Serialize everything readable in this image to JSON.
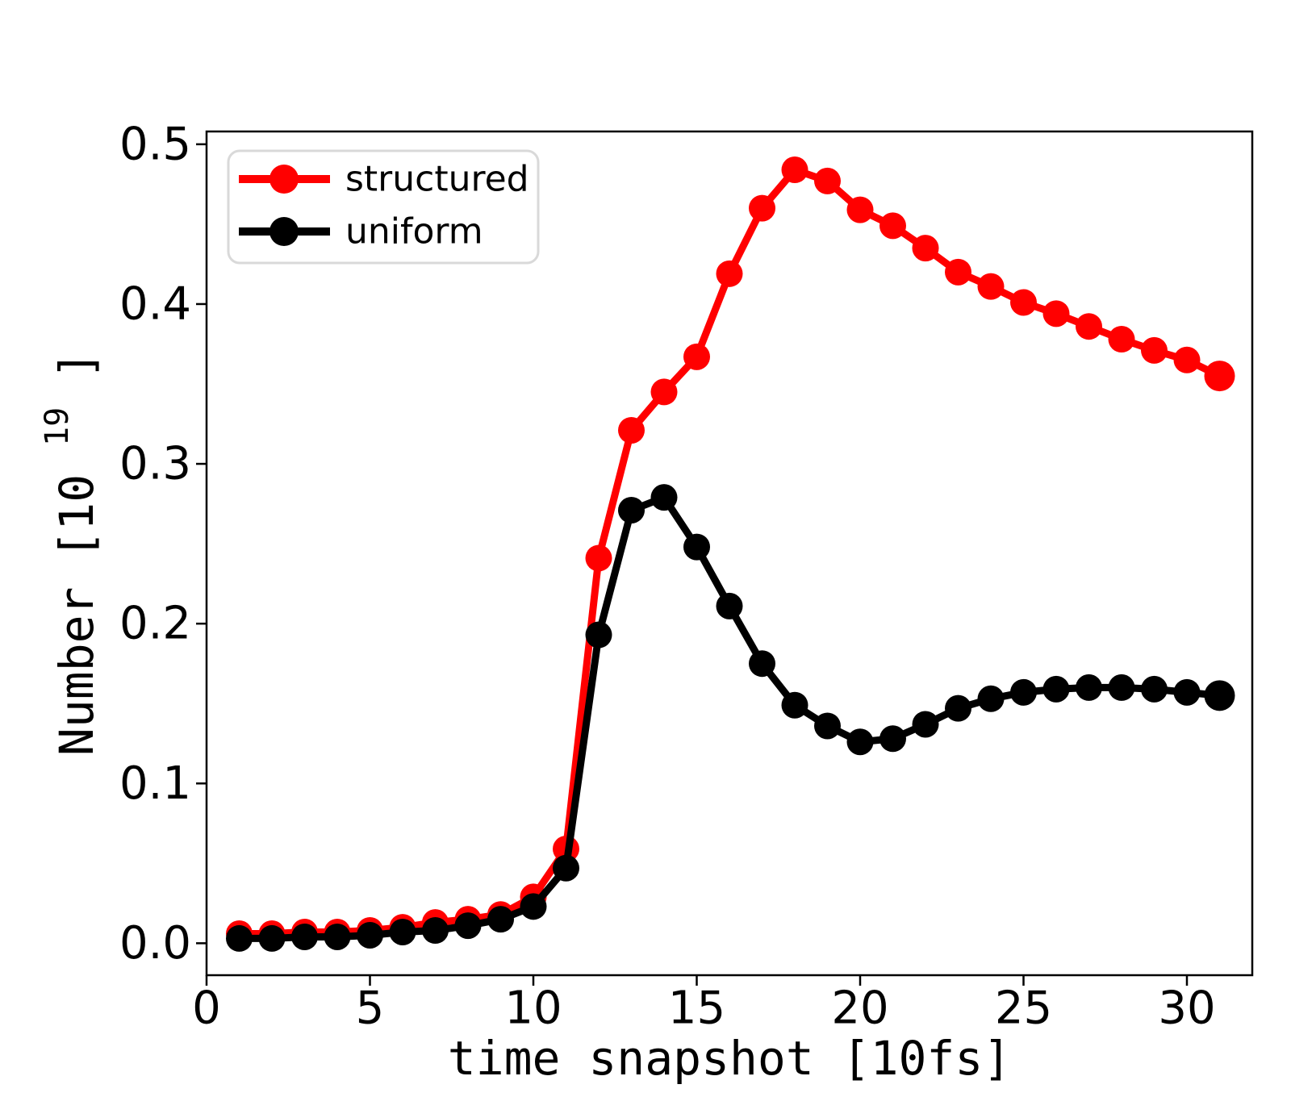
{
  "chart_data": {
    "type": "line",
    "title": "",
    "xlabel": "time snapshot [10fs]",
    "ylabel": "Number [10^19]",
    "ylabel_parts": {
      "base": "Number [10",
      "exponent": "19",
      "close": "]"
    },
    "xlim": [
      0,
      32
    ],
    "ylim": [
      -0.02,
      0.508
    ],
    "xticks": [
      0,
      5,
      10,
      15,
      20,
      25,
      30
    ],
    "yticks": [
      0.0,
      0.1,
      0.2,
      0.3,
      0.4,
      0.5
    ],
    "ytick_labels": [
      "0.0",
      "0.1",
      "0.2",
      "0.3",
      "0.4",
      "0.5"
    ],
    "grid": false,
    "legend": {
      "position": "upper-left"
    },
    "x": [
      1,
      2,
      3,
      4,
      5,
      6,
      7,
      8,
      9,
      10,
      11,
      12,
      13,
      14,
      15,
      16,
      17,
      18,
      19,
      20,
      21,
      22,
      23,
      24,
      25,
      26,
      27,
      28,
      29,
      30,
      31
    ],
    "series": [
      {
        "name": "structured",
        "color": "#ff0000",
        "values": [
          0.006,
          0.006,
          0.007,
          0.007,
          0.008,
          0.01,
          0.013,
          0.015,
          0.018,
          0.029,
          0.059,
          0.241,
          0.321,
          0.345,
          0.367,
          0.419,
          0.46,
          0.484,
          0.477,
          0.459,
          0.449,
          0.435,
          0.42,
          0.411,
          0.401,
          0.394,
          0.386,
          0.378,
          0.371,
          0.365,
          0.355
        ]
      },
      {
        "name": "uniform",
        "color": "#000000",
        "values": [
          0.003,
          0.003,
          0.004,
          0.004,
          0.005,
          0.007,
          0.008,
          0.011,
          0.015,
          0.023,
          0.047,
          0.193,
          0.271,
          0.279,
          0.248,
          0.211,
          0.175,
          0.149,
          0.136,
          0.126,
          0.128,
          0.137,
          0.147,
          0.153,
          0.157,
          0.159,
          0.16,
          0.16,
          0.159,
          0.157,
          0.155
        ]
      }
    ]
  },
  "colors": {
    "axis": "#000000",
    "background": "#ffffff",
    "legend_border": "#d9d9d9"
  }
}
